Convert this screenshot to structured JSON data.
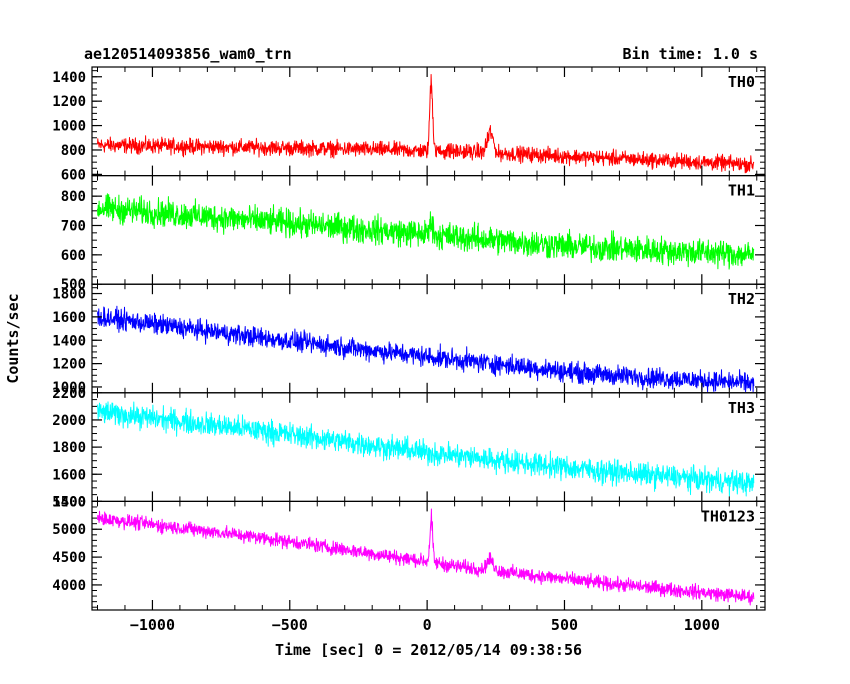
{
  "chart_data": {
    "type": "line",
    "title": "ae120514093856_wam0_trn",
    "bin_time": "Bin time: 1.0 s",
    "xlabel": "Time [sec] 0 = 2012/05/14 09:38:56",
    "ylabel": "Counts/sec",
    "xlim": [
      -1220,
      1230
    ],
    "x_ticks": [
      -1000,
      -500,
      0,
      500,
      1000
    ],
    "x_tick_labels": [
      "−1000",
      "−500",
      "0",
      "500",
      "1000"
    ],
    "x_range_data": [
      -1200,
      1190
    ],
    "panels": [
      {
        "name": "TH0",
        "color": "#ff0000",
        "ylim": [
          590,
          1480
        ],
        "yticks": [
          600,
          800,
          1000,
          1200,
          1400
        ],
        "ytick_labels": [
          "600",
          "800",
          "1000",
          "1200",
          "1400"
        ],
        "trend": [
          [
            -1200,
            840
          ],
          [
            -600,
            820
          ],
          [
            -100,
            800
          ],
          [
            0,
            790
          ],
          [
            100,
            790
          ],
          [
            600,
            740
          ],
          [
            1190,
            680
          ]
        ],
        "noise": 40,
        "peaks": [
          {
            "t": 15,
            "amp": 650,
            "width": 5
          },
          {
            "t": 230,
            "amp": 180,
            "width": 10
          }
        ],
        "min_plot": 600
      },
      {
        "name": "TH1",
        "color": "#00ff00",
        "ylim": [
          500,
          870
        ],
        "yticks": [
          500,
          600,
          700,
          800
        ],
        "ytick_labels": [
          "500",
          "600",
          "700",
          "800"
        ],
        "trend": [
          [
            -1200,
            760
          ],
          [
            -600,
            715
          ],
          [
            0,
            670
          ],
          [
            500,
            630
          ],
          [
            1190,
            600
          ]
        ],
        "noise": 30,
        "peaks": [
          {
            "t": 15,
            "amp": 45,
            "width": 6
          }
        ],
        "min_plot": 500
      },
      {
        "name": "TH2",
        "color": "#0000ff",
        "ylim": [
          950,
          1880
        ],
        "yticks": [
          1000,
          1200,
          1400,
          1600,
          1800
        ],
        "ytick_labels": [
          "1000",
          "1200",
          "1400",
          "1600",
          "1800"
        ],
        "trend": [
          [
            -1200,
            1600
          ],
          [
            -600,
            1420
          ],
          [
            0,
            1260
          ],
          [
            600,
            1110
          ],
          [
            1190,
            1030
          ]
        ],
        "noise": 55,
        "peaks": [],
        "min_plot": 960
      },
      {
        "name": "TH3",
        "color": "#00ffff",
        "ylim": [
          1400,
          2200
        ],
        "yticks": [
          1400,
          1600,
          1800,
          2000,
          2200
        ],
        "ytick_labels": [
          "1400",
          "1600",
          "1800",
          "2000",
          "2200"
        ],
        "trend": [
          [
            -1200,
            2060
          ],
          [
            -600,
            1920
          ],
          [
            0,
            1760
          ],
          [
            600,
            1630
          ],
          [
            1190,
            1530
          ]
        ],
        "noise": 55,
        "peaks": [],
        "min_plot": 1440
      },
      {
        "name": "TH0123",
        "color": "#ff00ff",
        "ylim": [
          3550,
          5500
        ],
        "yticks": [
          4000,
          4500,
          5000,
          5500
        ],
        "ytick_labels": [
          "4000",
          "4500",
          "5000",
          "5500"
        ],
        "trend": [
          [
            -1200,
            5200
          ],
          [
            -600,
            4850
          ],
          [
            0,
            4420
          ],
          [
            100,
            4340
          ],
          [
            600,
            4050
          ],
          [
            1190,
            3780
          ]
        ],
        "noise": 80,
        "peaks": [
          {
            "t": 15,
            "amp": 800,
            "width": 5
          },
          {
            "t": 230,
            "amp": 200,
            "width": 12
          }
        ],
        "min_plot": 3600
      }
    ]
  }
}
